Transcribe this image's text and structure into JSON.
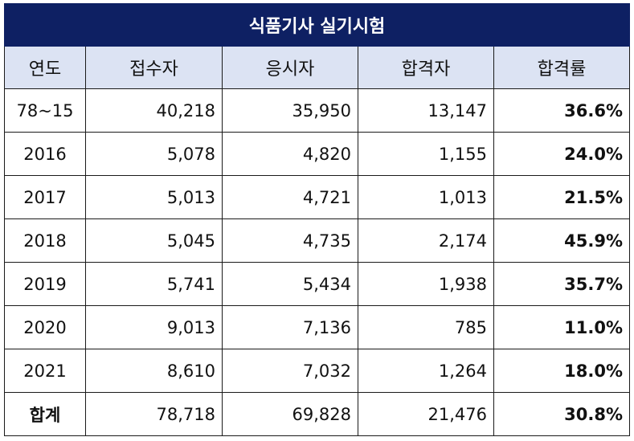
{
  "table": {
    "title": "식품기사 실기시험",
    "headers": [
      "연도",
      "접수자",
      "응시자",
      "합격자",
      "합격률"
    ],
    "rows": [
      [
        "78~15",
        "40,218",
        "35,950",
        "13,147",
        "36.6%"
      ],
      [
        "2016",
        "5,078",
        "4,820",
        "1,155",
        "24.0%"
      ],
      [
        "2017",
        "5,013",
        "4,721",
        "1,013",
        "21.5%"
      ],
      [
        "2018",
        "5,045",
        "4,735",
        "2,174",
        "45.9%"
      ],
      [
        "2019",
        "5,741",
        "5,434",
        "1,938",
        "35.7%"
      ],
      [
        "2020",
        "9,013",
        "7,136",
        "785",
        "11.0%"
      ],
      [
        "2021",
        "8,610",
        "7,032",
        "1,264",
        "18.0%"
      ]
    ],
    "total": [
      "합계",
      "78,718",
      "69,828",
      "21,476",
      "30.8%"
    ]
  },
  "colors": {
    "title_background": "#0e2063",
    "header_background": "#dce3f3",
    "border": "#1a1a1a"
  }
}
